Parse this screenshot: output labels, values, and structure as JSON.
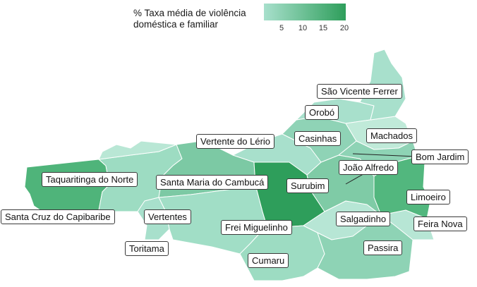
{
  "legend": {
    "title_line1": "% Taxa média de violência",
    "title_line2": "doméstica e familiar",
    "ticks": [
      "5",
      "10",
      "15",
      "20"
    ],
    "colors": {
      "low": "#a8e0cc",
      "high": "#2e9e5b"
    }
  },
  "municipalities": {
    "sao_vicente_ferrer": "São Vicente Ferrer",
    "oroba": "Orobó",
    "machados": "Machados",
    "casinhas": "Casinhas",
    "vertente_do_lerio": "Vertente do Lério",
    "bom_jardim": "Bom Jardim",
    "joao_alfredo": "João Alfredo",
    "taquaritinga_do_norte": "Taquaritinga do Norte",
    "santa_maria_do_cambuca": "Santa Maria do Cambucá",
    "surubim": "Surubim",
    "limoeiro": "Limoeiro",
    "santa_cruz_do_capibaribe": "Santa Cruz do Capibaribe",
    "vertentes": "Vertentes",
    "salgadinho": "Salgadinho",
    "feira_nova": "Feira Nova",
    "frei_miguelinho": "Frei Miguelinho",
    "passira": "Passira",
    "toritama": "Toritama",
    "cumaru": "Cumaru"
  }
}
